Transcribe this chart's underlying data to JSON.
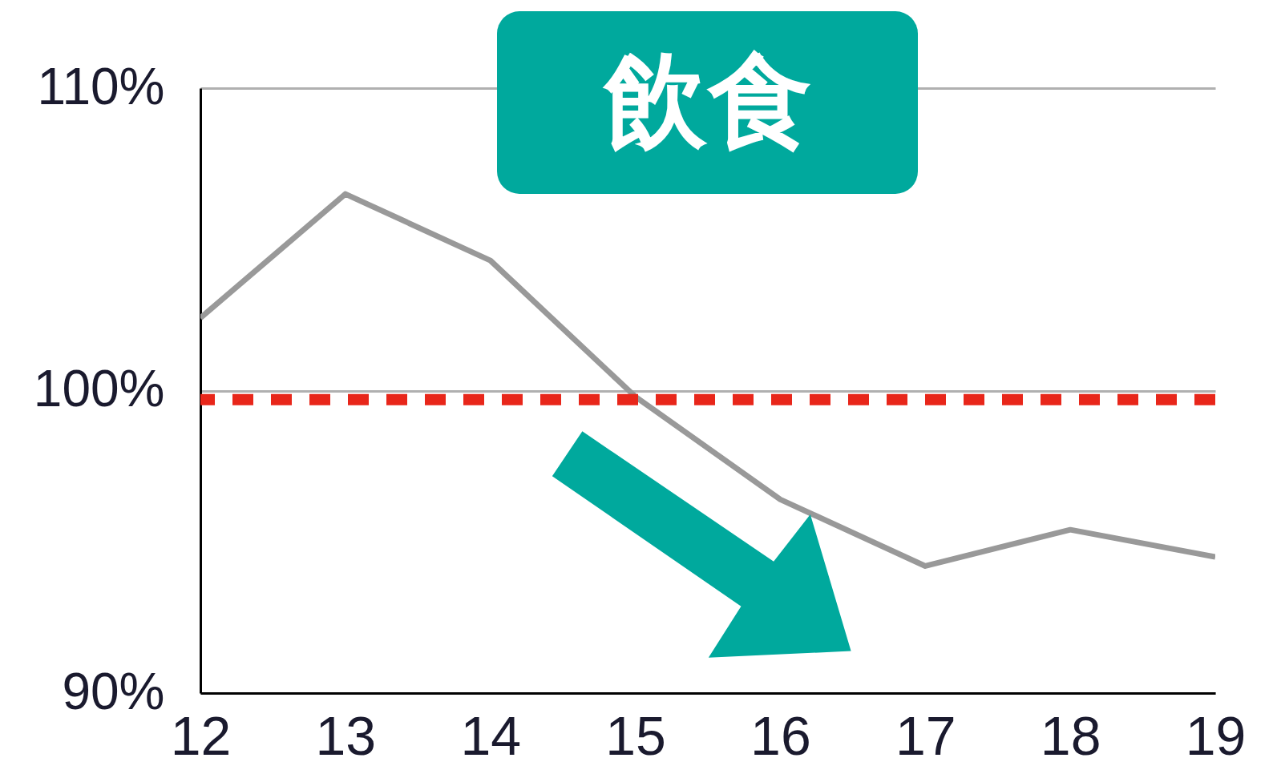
{
  "chart_data": {
    "type": "line",
    "title": "飲食",
    "x": [
      12,
      13,
      14,
      15,
      16,
      17,
      18,
      19
    ],
    "series": [
      {
        "color": "#999999",
        "values": [
          102.4,
          106.5,
          104.3,
          99.8,
          96.4,
          94.2,
          95.4,
          94.5
        ]
      }
    ],
    "xlim": [
      12,
      19
    ],
    "xticks": [
      12,
      13,
      14,
      15,
      16,
      17,
      18,
      19
    ],
    "ylim": [
      90,
      110
    ],
    "yticks": [
      {
        "value": 90,
        "label": "90%"
      },
      {
        "value": 100,
        "label": "100%"
      },
      {
        "value": 110,
        "label": "110%"
      }
    ],
    "grid": "y",
    "ref_lines": [
      {
        "axis": "y",
        "value": 99.7,
        "color": "#e8261a",
        "line_style": "dashed"
      }
    ]
  }
}
